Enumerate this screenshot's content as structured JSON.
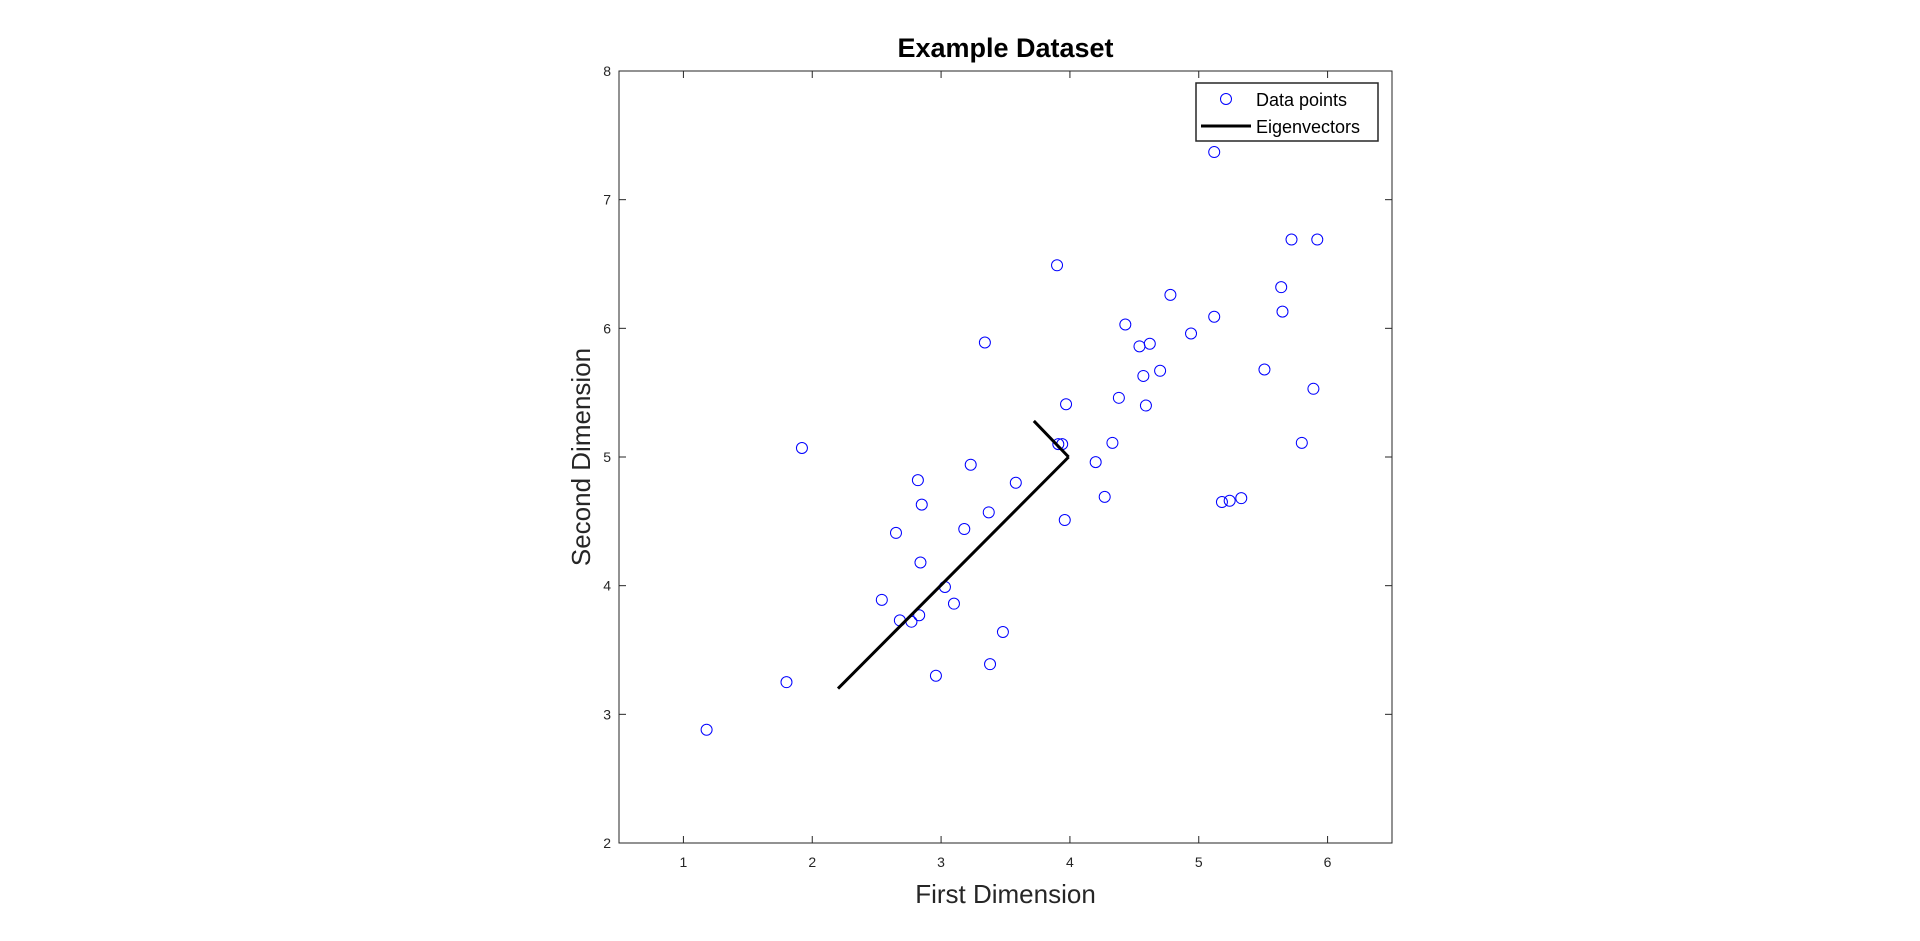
{
  "chart_data": {
    "type": "scatter",
    "title": "Example Dataset",
    "xlabel": "First Dimension",
    "ylabel": "Second Dimension",
    "xlim": [
      0.5,
      6.5
    ],
    "ylim": [
      2,
      8
    ],
    "xticks": [
      "1",
      "2",
      "3",
      "4",
      "5",
      "6"
    ],
    "yticks": [
      "2",
      "3",
      "4",
      "5",
      "6",
      "7",
      "8"
    ],
    "grid": false,
    "legend_position": "top-right",
    "series": [
      {
        "name": "Data points",
        "kind": "scatter",
        "marker": "circle",
        "color": "#0000ff",
        "points": [
          [
            1.18,
            2.88
          ],
          [
            1.8,
            3.25
          ],
          [
            1.92,
            5.07
          ],
          [
            2.54,
            3.89
          ],
          [
            2.65,
            4.41
          ],
          [
            2.68,
            3.73
          ],
          [
            2.77,
            3.72
          ],
          [
            2.82,
            4.82
          ],
          [
            2.83,
            3.77
          ],
          [
            2.84,
            4.18
          ],
          [
            2.85,
            4.63
          ],
          [
            2.96,
            3.3
          ],
          [
            3.03,
            3.99
          ],
          [
            3.1,
            3.86
          ],
          [
            3.18,
            4.44
          ],
          [
            3.23,
            4.94
          ],
          [
            3.34,
            5.89
          ],
          [
            3.37,
            4.57
          ],
          [
            3.38,
            3.39
          ],
          [
            3.48,
            3.64
          ],
          [
            3.58,
            4.8
          ],
          [
            3.9,
            6.49
          ],
          [
            3.91,
            5.1
          ],
          [
            3.94,
            5.1
          ],
          [
            3.96,
            4.51
          ],
          [
            3.97,
            5.41
          ],
          [
            4.2,
            4.96
          ],
          [
            4.27,
            4.69
          ],
          [
            4.33,
            5.11
          ],
          [
            4.38,
            5.46
          ],
          [
            4.43,
            6.03
          ],
          [
            4.54,
            5.86
          ],
          [
            4.57,
            5.63
          ],
          [
            4.59,
            5.4
          ],
          [
            4.62,
            5.88
          ],
          [
            4.7,
            5.67
          ],
          [
            4.78,
            6.26
          ],
          [
            4.94,
            5.96
          ],
          [
            5.12,
            6.09
          ],
          [
            5.12,
            7.37
          ],
          [
            5.18,
            4.65
          ],
          [
            5.24,
            4.66
          ],
          [
            5.33,
            4.68
          ],
          [
            5.51,
            5.68
          ],
          [
            5.64,
            6.32
          ],
          [
            5.65,
            6.13
          ],
          [
            5.72,
            6.69
          ],
          [
            5.8,
            5.11
          ],
          [
            5.89,
            5.53
          ],
          [
            5.92,
            6.69
          ]
        ]
      },
      {
        "name": "Eigenvectors",
        "kind": "line",
        "color": "#000000",
        "segments": [
          [
            [
              3.99,
              5.0
            ],
            [
              2.2,
              3.2
            ]
          ],
          [
            [
              3.99,
              5.0
            ],
            [
              3.72,
              5.28
            ]
          ]
        ]
      }
    ]
  }
}
